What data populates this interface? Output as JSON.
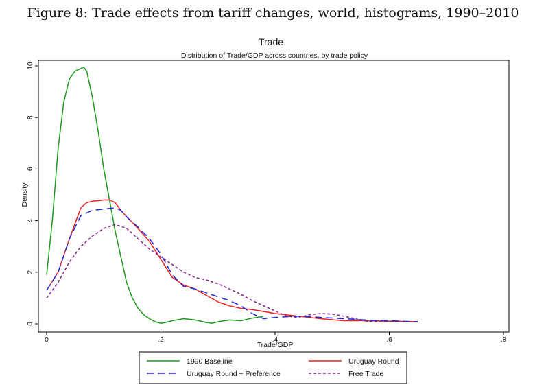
{
  "figure": {
    "caption": "Figure 8: Trade effects from tariff changes, world, histograms, 1990–2010"
  },
  "chart_data": {
    "type": "line",
    "title": "Trade",
    "subtitle": "Distribution of Trade/GDP across countries, by trade policy",
    "xlabel": "Trade/GDP",
    "ylabel": "Density",
    "xlim": [
      0,
      0.8
    ],
    "ylim": [
      0,
      10
    ],
    "xticks": [
      0,
      0.2,
      0.4,
      0.6,
      0.8
    ],
    "xtick_labels": [
      "0",
      ".2",
      ".4",
      ".6",
      ".8"
    ],
    "yticks": [
      0,
      2,
      4,
      6,
      8,
      10
    ],
    "ytick_labels": [
      "0",
      "2",
      "4",
      "6",
      "8",
      "10"
    ],
    "legend_position": "bottom",
    "series": [
      {
        "name": "1990 Baseline",
        "color": "#1a9a1a",
        "dash": "solid",
        "x": [
          0,
          0.01,
          0.02,
          0.03,
          0.04,
          0.05,
          0.06,
          0.065,
          0.07,
          0.08,
          0.09,
          0.1,
          0.11,
          0.12,
          0.13,
          0.14,
          0.15,
          0.16,
          0.17,
          0.18,
          0.19,
          0.2,
          0.21,
          0.22,
          0.24,
          0.26,
          0.28,
          0.29,
          0.3,
          0.32,
          0.34,
          0.36,
          0.38
        ],
        "y": [
          1.9,
          4.0,
          6.8,
          8.6,
          9.5,
          9.8,
          9.9,
          9.95,
          9.8,
          8.8,
          7.5,
          6.0,
          4.8,
          3.6,
          2.6,
          1.6,
          1.0,
          0.6,
          0.35,
          0.2,
          0.08,
          0.02,
          0.06,
          0.12,
          0.2,
          0.15,
          0.05,
          0.02,
          0.08,
          0.15,
          0.12,
          0.22,
          0.3
        ]
      },
      {
        "name": "Uruguay Round",
        "color": "#e8201e",
        "dash": "solid",
        "x": [
          0,
          0.02,
          0.04,
          0.06,
          0.07,
          0.08,
          0.1,
          0.11,
          0.12,
          0.13,
          0.14,
          0.16,
          0.18,
          0.2,
          0.22,
          0.24,
          0.26,
          0.28,
          0.3,
          0.32,
          0.34,
          0.36,
          0.38,
          0.4,
          0.44,
          0.48,
          0.52,
          0.56,
          0.6,
          0.65
        ],
        "y": [
          1.3,
          2.0,
          3.3,
          4.5,
          4.7,
          4.75,
          4.8,
          4.8,
          4.7,
          4.4,
          4.15,
          3.7,
          3.2,
          2.5,
          1.8,
          1.5,
          1.35,
          1.1,
          0.85,
          0.7,
          0.6,
          0.55,
          0.48,
          0.4,
          0.3,
          0.2,
          0.12,
          0.12,
          0.1,
          0.08
        ]
      },
      {
        "name": "Uruguay Round + Preference",
        "color": "#1a24e0",
        "dash": "long",
        "x": [
          0,
          0.02,
          0.04,
          0.06,
          0.08,
          0.1,
          0.12,
          0.13,
          0.14,
          0.16,
          0.18,
          0.2,
          0.22,
          0.24,
          0.26,
          0.28,
          0.3,
          0.32,
          0.34,
          0.36,
          0.38,
          0.4,
          0.44,
          0.48,
          0.52,
          0.56,
          0.6,
          0.65
        ],
        "y": [
          1.3,
          2.0,
          3.3,
          4.2,
          4.4,
          4.45,
          4.5,
          4.4,
          4.15,
          3.75,
          3.3,
          2.7,
          1.9,
          1.45,
          1.35,
          1.2,
          1.05,
          0.9,
          0.7,
          0.4,
          0.2,
          0.25,
          0.3,
          0.25,
          0.2,
          0.15,
          0.12,
          0.08
        ]
      },
      {
        "name": "Free Trade",
        "color": "#8a238a",
        "dash": "short",
        "x": [
          0,
          0.02,
          0.04,
          0.06,
          0.08,
          0.1,
          0.12,
          0.14,
          0.16,
          0.18,
          0.2,
          0.22,
          0.24,
          0.26,
          0.28,
          0.3,
          0.32,
          0.34,
          0.36,
          0.38,
          0.4,
          0.42,
          0.44,
          0.46,
          0.48,
          0.5,
          0.52,
          0.54,
          0.56,
          0.6,
          0.65
        ],
        "y": [
          1.0,
          1.6,
          2.4,
          3.0,
          3.4,
          3.7,
          3.85,
          3.7,
          3.3,
          2.9,
          2.6,
          2.3,
          2.0,
          1.8,
          1.7,
          1.55,
          1.35,
          1.15,
          0.9,
          0.7,
          0.5,
          0.3,
          0.25,
          0.35,
          0.4,
          0.38,
          0.3,
          0.2,
          0.1,
          0.1,
          0.08
        ]
      }
    ]
  }
}
